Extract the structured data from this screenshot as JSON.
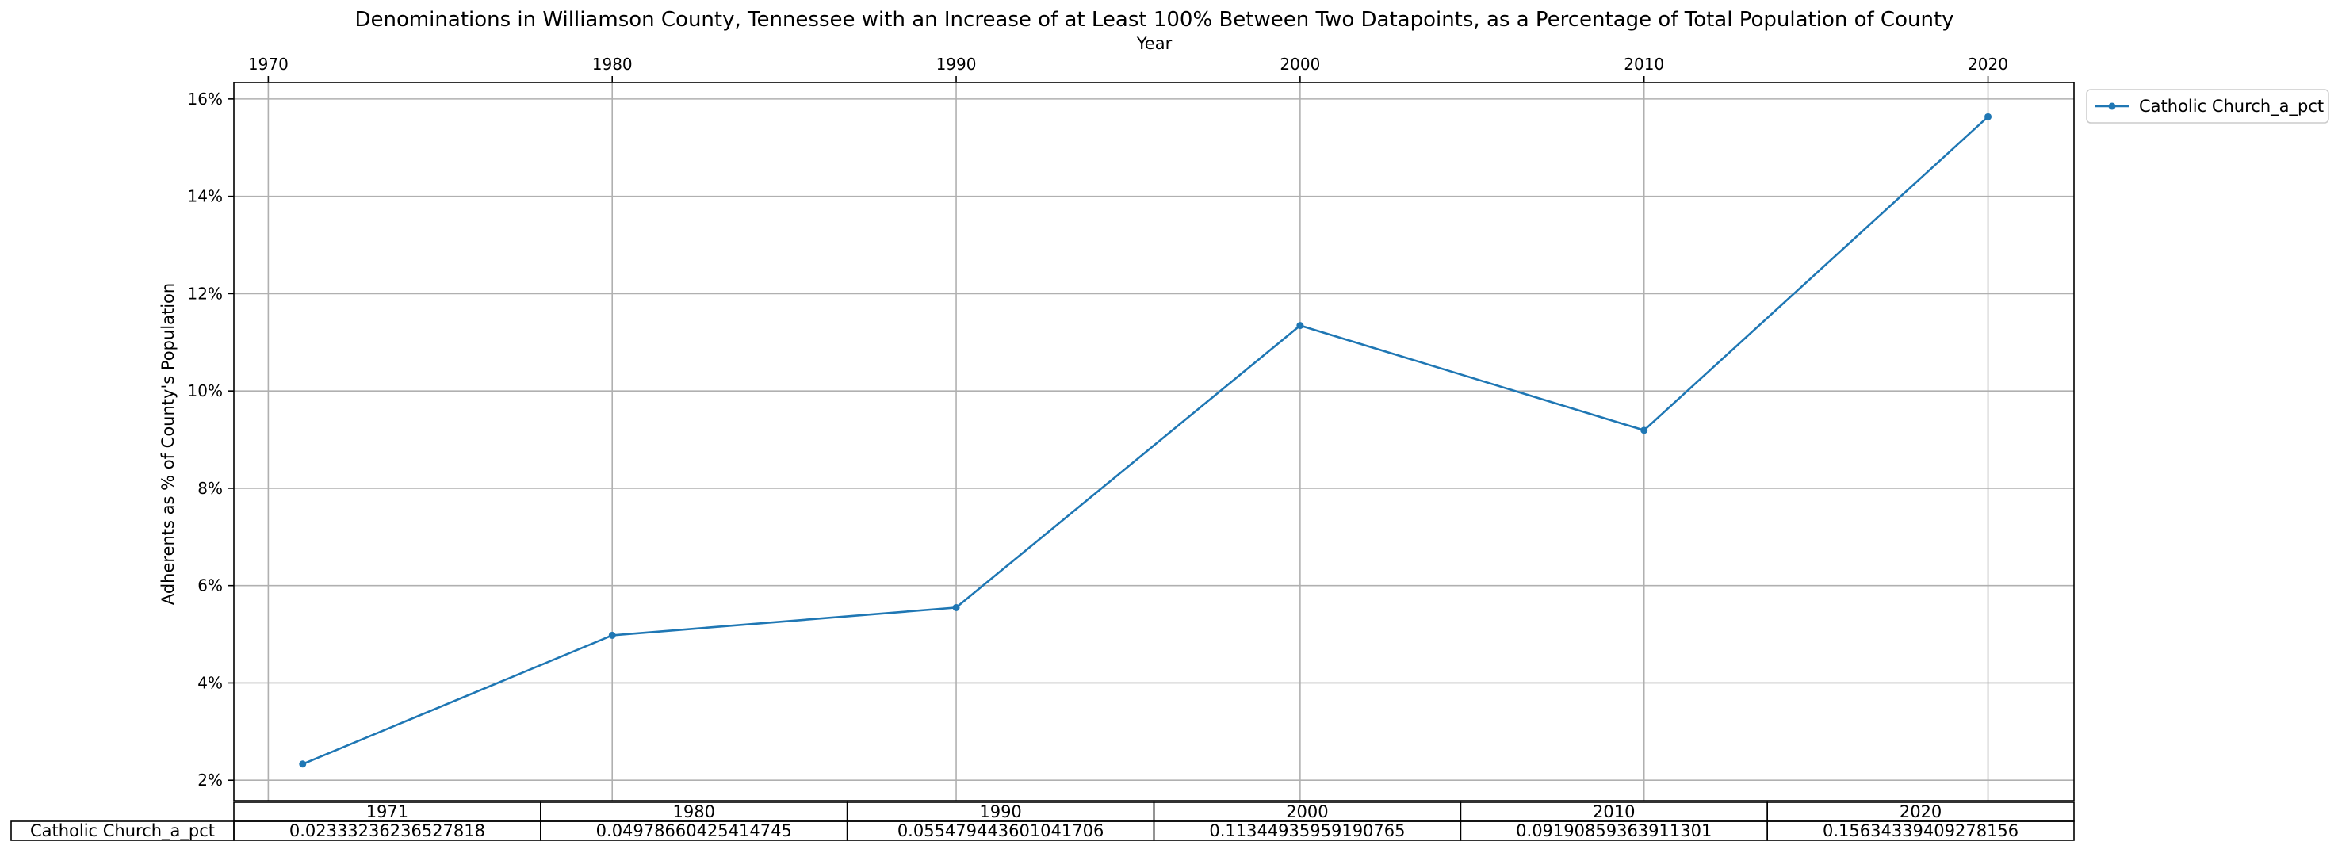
{
  "chart_data": {
    "type": "line",
    "title": "Denominations in Williamson County, Tennessee with an Increase of at Least 100% Between Two Datapoints, as a Percentage of Total Population of County",
    "xlabel": "Year",
    "ylabel": "Adherents as % of County's Population",
    "x": [
      1971,
      1980,
      1990,
      2000,
      2010,
      2020
    ],
    "x_ticks": [
      1970,
      1980,
      1990,
      2000,
      2010,
      2020
    ],
    "x_tick_labels": [
      "1970",
      "1980",
      "1990",
      "2000",
      "2010",
      "2020"
    ],
    "xlim": [
      1969,
      2022.5
    ],
    "y_ticks": [
      0.02,
      0.04,
      0.06,
      0.08,
      0.1,
      0.12,
      0.14,
      0.16
    ],
    "y_tick_labels": [
      "2%",
      "4%",
      "6%",
      "8%",
      "10%",
      "12%",
      "14%",
      "16%"
    ],
    "ylim": [
      0.0158,
      0.1634
    ],
    "grid": true,
    "legend_position": "outside-top-right",
    "color": "#1f77b4",
    "series": [
      {
        "name": "Catholic Church_a_pct",
        "values": [
          0.02333236236527818,
          0.04978660425414745,
          0.055479443601041706,
          0.11344935959190765,
          0.09190859363911301,
          0.15634339409278156
        ]
      }
    ],
    "table": {
      "columns": [
        "1971",
        "1980",
        "1990",
        "2000",
        "2010",
        "2020"
      ],
      "row_label": "Catholic Church_a_pct",
      "cells": [
        "0.02333236236527818",
        "0.04978660425414745",
        "0.055479443601041706",
        "0.11344935959190765",
        "0.09190859363911301",
        "0.15634339409278156"
      ]
    }
  }
}
